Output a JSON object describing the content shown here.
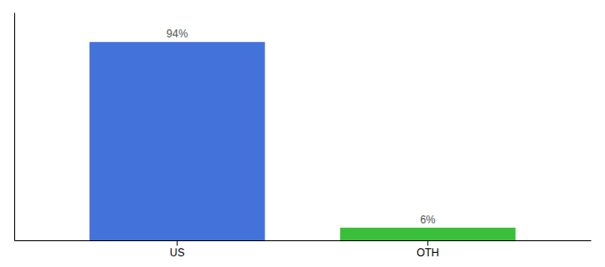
{
  "chart_data": {
    "type": "bar",
    "categories": [
      "US",
      "OTH"
    ],
    "values": [
      94,
      6
    ],
    "value_labels": [
      "94%",
      "6%"
    ],
    "data_labels": true,
    "colors": [
      "#4472db",
      "#3abf3a"
    ],
    "ylim": [
      0,
      108
    ],
    "tick_labels": "x"
  }
}
